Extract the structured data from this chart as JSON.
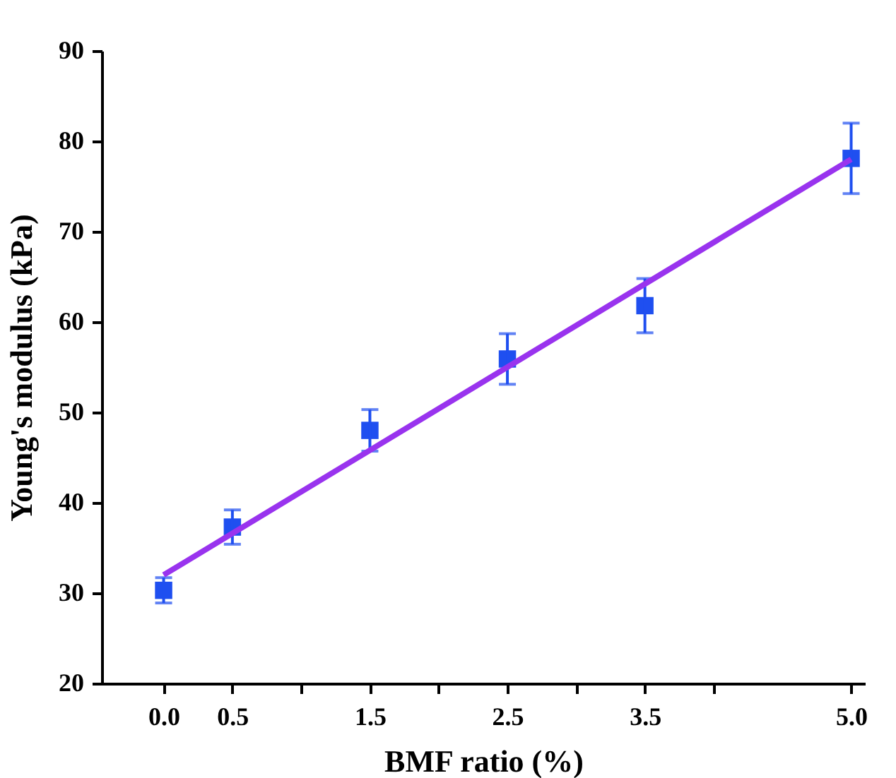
{
  "chart_data": {
    "type": "scatter",
    "xlabel": "BMF ratio (%)",
    "ylabel": "Young's modulus (kPa)",
    "xlim": [
      -0.45,
      5.1
    ],
    "ylim": [
      20,
      90
    ],
    "xticks": [
      {
        "value": 0,
        "label": "0.0"
      },
      {
        "value": 0.5,
        "label": "0.5"
      },
      {
        "value": 1,
        "label": null
      },
      {
        "value": 1.5,
        "label": "1.5"
      },
      {
        "value": 2,
        "label": null
      },
      {
        "value": 2.5,
        "label": "2.5"
      },
      {
        "value": 3,
        "label": null
      },
      {
        "value": 3.5,
        "label": "3.5"
      },
      {
        "value": 4,
        "label": null
      },
      {
        "value": 5,
        "label": "5.0"
      }
    ],
    "yticks": [
      20,
      30,
      40,
      50,
      60,
      70,
      80,
      90
    ],
    "grid": false,
    "series": [
      {
        "marker": "square",
        "color": "#1f4ff0",
        "x": [
          0,
          0.5,
          1.5,
          2.5,
          3.5,
          5
        ],
        "values": [
          30.3,
          37.3,
          48.0,
          55.9,
          61.8,
          78.1
        ],
        "errors": [
          1.4,
          1.9,
          2.3,
          2.8,
          3.0,
          3.9
        ]
      },
      {
        "type": "line",
        "color": "#9933ee",
        "x": [
          0,
          5
        ],
        "values": [
          32.0,
          78.0
        ],
        "line_style": "solid"
      }
    ]
  }
}
